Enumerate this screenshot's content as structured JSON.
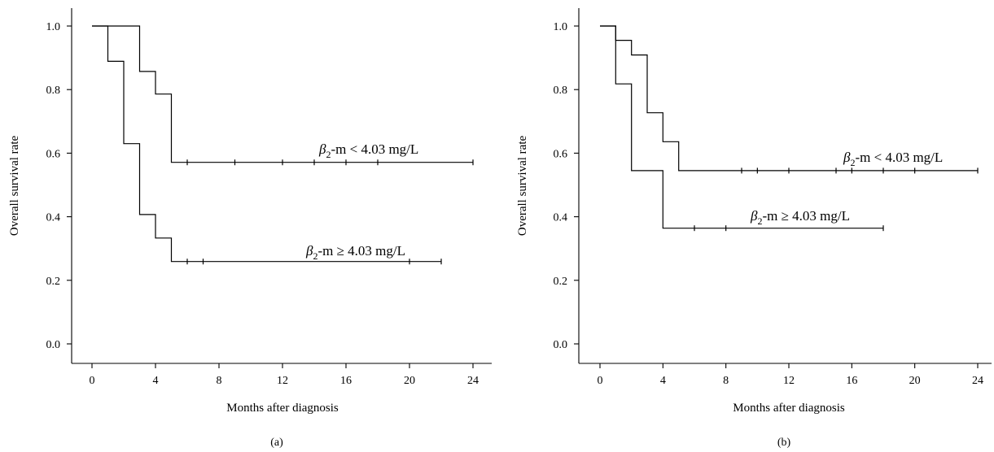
{
  "chart_data": [
    {
      "type": "line",
      "subtype": "kaplan-meier-step",
      "panel_label": "(a)",
      "xlabel": "Months after diagnosis",
      "ylabel": "Overall survival rate",
      "xlim": [
        0,
        24
      ],
      "ylim": [
        0,
        1.0
      ],
      "xticks": [
        "0",
        "4",
        "8",
        "12",
        "16",
        "20",
        "24"
      ],
      "yticks": [
        "0.0",
        "0.2",
        "0.4",
        "0.6",
        "0.8",
        "1.0"
      ],
      "grid": false,
      "series": [
        {
          "name_main": "β",
          "name_sub": "2",
          "name_rest": "-m < 4.03 mg/L",
          "steps": [
            [
              0,
              1.0
            ],
            [
              3,
              0.857
            ],
            [
              4,
              0.786
            ],
            [
              5,
              0.571
            ],
            [
              24,
              0.571
            ]
          ],
          "censored": [
            6,
            9,
            12,
            14,
            16,
            18,
            24
          ]
        },
        {
          "name_main": "β",
          "name_sub": "2",
          "name_rest": "-m ≥ 4.03 mg/L",
          "steps": [
            [
              0,
              1.0
            ],
            [
              1,
              0.889
            ],
            [
              2,
              0.63
            ],
            [
              3,
              0.407
            ],
            [
              4,
              0.333
            ],
            [
              5,
              0.259
            ],
            [
              22,
              0.259
            ]
          ],
          "censored": [
            6,
            7,
            20,
            22
          ]
        }
      ]
    },
    {
      "type": "line",
      "subtype": "kaplan-meier-step",
      "panel_label": "(b)",
      "xlabel": "Months after diagnosis",
      "ylabel": "Overall survival rate",
      "xlim": [
        0,
        24
      ],
      "ylim": [
        0,
        1.0
      ],
      "xticks": [
        "0",
        "4",
        "8",
        "12",
        "16",
        "20",
        "24"
      ],
      "yticks": [
        "0.0",
        "0.2",
        "0.4",
        "0.6",
        "0.8",
        "1.0"
      ],
      "grid": false,
      "series": [
        {
          "name_main": "β",
          "name_sub": "2",
          "name_rest": "-m < 4.03 mg/L",
          "steps": [
            [
              0,
              1.0
            ],
            [
              1,
              0.955
            ],
            [
              2,
              0.909
            ],
            [
              3,
              0.727
            ],
            [
              4,
              0.636
            ],
            [
              5,
              0.545
            ],
            [
              24,
              0.545
            ]
          ],
          "censored": [
            9,
            10,
            12,
            15,
            16,
            18,
            20,
            24
          ]
        },
        {
          "name_main": "β",
          "name_sub": "2",
          "name_rest": "-m ≥ 4.03 mg/L",
          "steps": [
            [
              0,
              1.0
            ],
            [
              1,
              0.818
            ],
            [
              2,
              0.545
            ],
            [
              4,
              0.364
            ],
            [
              18,
              0.364
            ]
          ],
          "censored": [
            6,
            8,
            18
          ]
        }
      ]
    }
  ]
}
